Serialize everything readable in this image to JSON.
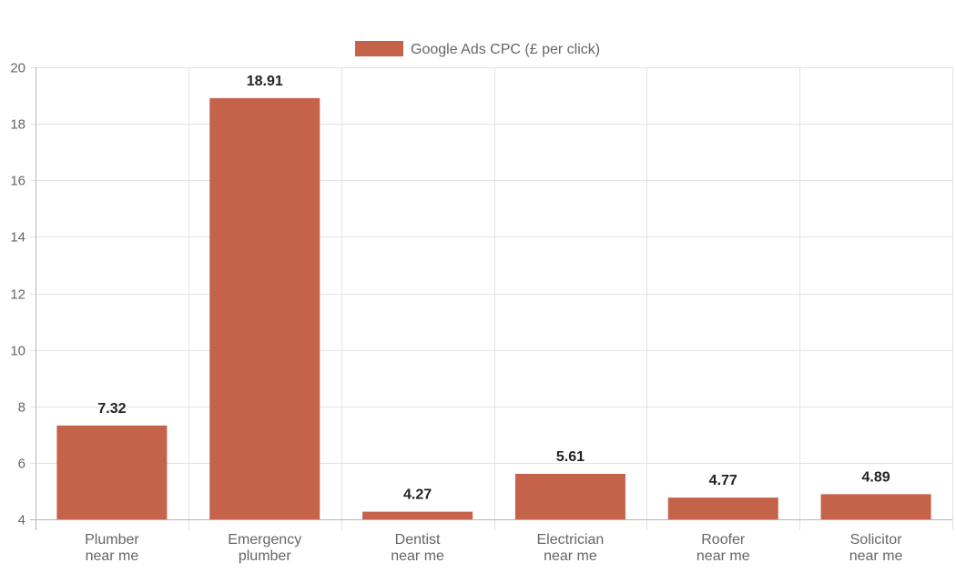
{
  "chart_data": {
    "type": "bar",
    "categories": [
      [
        "Plumber",
        "near me"
      ],
      [
        "Emergency",
        "plumber"
      ],
      [
        "Dentist",
        "near me"
      ],
      [
        "Electrician",
        "near me"
      ],
      [
        "Roofer",
        "near me"
      ],
      [
        "Solicitor",
        "near me"
      ]
    ],
    "series": [
      {
        "name": "Google Ads CPC (£ per click)",
        "values": [
          7.32,
          18.91,
          4.27,
          5.61,
          4.77,
          4.89
        ],
        "color": "#c4624a"
      }
    ],
    "data_labels": [
      "7.32",
      "18.91",
      "4.27",
      "5.61",
      "4.77",
      "4.89"
    ],
    "ylim": [
      4,
      20
    ],
    "y_ticks": [
      4,
      6,
      8,
      10,
      12,
      14,
      16,
      18,
      20
    ],
    "grid": true,
    "legend_position": "top-center",
    "title": "",
    "xlabel": "",
    "ylabel": ""
  }
}
